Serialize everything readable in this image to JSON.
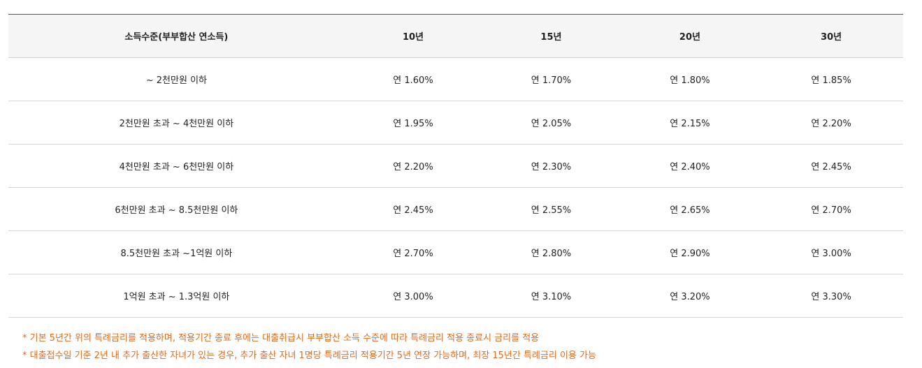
{
  "table": {
    "headers": [
      "소득수준(부부합산 연소득)",
      "10년",
      "15년",
      "20년",
      "30년"
    ],
    "rows": [
      [
        "~ 2천만원 이하",
        "연 1.60%",
        "연 1.70%",
        "연 1.80%",
        "연 1.85%"
      ],
      [
        "2천만원 초과 ~ 4천만원 이하",
        "연 1.95%",
        "연 2.05%",
        "연 2.15%",
        "연 2.20%"
      ],
      [
        "4천만원 초과 ~ 6천만원 이하",
        "연 2.20%",
        "연 2.30%",
        "연 2.40%",
        "연 2.45%"
      ],
      [
        "6천만원 초과 ~ 8.5천만원 이하",
        "연 2.45%",
        "연 2.55%",
        "연 2.65%",
        "연 2.70%"
      ],
      [
        "8.5천만원 초과 ~1억원 이하",
        "연 2.70%",
        "연 2.80%",
        "연 2.90%",
        "연 3.00%"
      ],
      [
        "1억원 초과 ~ 1.3억원 이하",
        "연 3.00%",
        "연 3.10%",
        "연 3.20%",
        "연 3.30%"
      ]
    ]
  },
  "notes": [
    "* 기본 5년간 위의 특례금리를 적용하며, 적용기간 종료 후에는 대출취급시 부부합산 소득 수준에 따라 특례금리 적용 종료시 금리를 적용",
    "* 대출접수일 기준 2년 내 추가 출산한 자녀가 있는 경우, 추가 출산 자녀 1명당 특례금리 적용기간 5년 연장 가능하며, 최장 15년간 특례금리 이용 가능"
  ],
  "colors": {
    "note_text": "#e26a1c",
    "header_bg": "#f5f5f5"
  }
}
